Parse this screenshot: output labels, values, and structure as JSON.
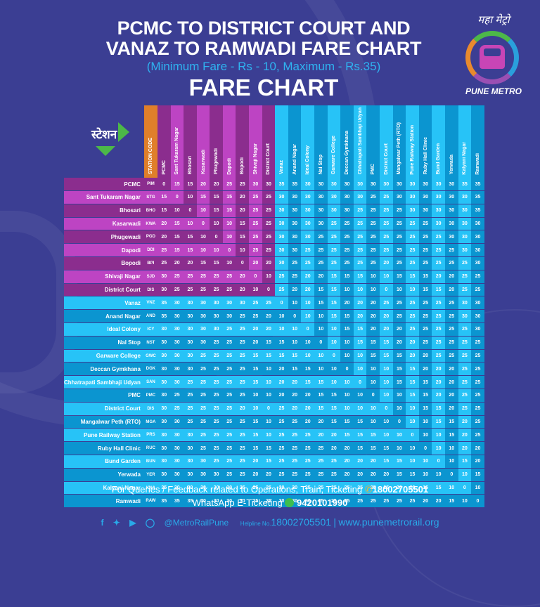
{
  "header": {
    "title_line1": "PCMC TO DISTRICT COURT AND",
    "title_line2": "VANAZ TO RAMWADI FARE CHART",
    "subtitle": "(Minimum Fare - Rs - 10, Maximum - Rs.35)",
    "heading": "FARE CHART"
  },
  "logo": {
    "hindi_text": "महा मेट्रो",
    "name": "PUNE METRO"
  },
  "table_labels": {
    "station_hindi": "स्टेशन",
    "station_code_header": "STATION CODE"
  },
  "colors": {
    "background": "#3b3e93",
    "purple_dark": "#8b2d8e",
    "purple_light": "#bd44c3",
    "blue_light": "#27c3f7",
    "blue_dark": "#0b95d0",
    "orange": "#e07f2a",
    "green": "#4cb848",
    "subtitle_blue": "#2fb3f0"
  },
  "chart_data": {
    "type": "table",
    "title": "PCMC TO DISTRICT COURT AND VANAZ TO RAMWADI FARE CHART",
    "subtitle": "(Minimum Fare - Rs - 10, Maximum - Rs.35)",
    "columns": [
      "PCMC",
      "Sant Tukaram Nagar",
      "Bhosari",
      "Kasarwadi",
      "Phugewadi",
      "Dapodi",
      "Bopodi",
      "Shivaji Nagar",
      "District Court",
      "Vanaz",
      "Anand Nagar",
      "Ideal Colony",
      "Nal Stop",
      "Garware College",
      "Deccan Gymkhana",
      "Chhatrapati Sambhaji Udyan",
      "PMC",
      "District Court",
      "Mangalwar Peth (RTO)",
      "Pune Railway Station",
      "Ruby Hall Clinic",
      "Bund Garden",
      "Yerwada",
      "Kalyani Nagar",
      "Ramwadi"
    ],
    "rows": [
      {
        "station": "PCMC",
        "code": "PIM",
        "line": "purple",
        "fares": [
          0,
          15,
          15,
          20,
          20,
          25,
          25,
          30,
          30,
          35,
          35,
          30,
          30,
          30,
          30,
          30,
          30,
          30,
          30,
          30,
          30,
          30,
          30,
          35,
          35
        ]
      },
      {
        "station": "Sant Tukaram Nagar",
        "code": "STG",
        "line": "purple",
        "fares": [
          15,
          0,
          10,
          15,
          15,
          15,
          20,
          25,
          25,
          30,
          30,
          30,
          30,
          30,
          30,
          30,
          25,
          25,
          30,
          30,
          30,
          30,
          30,
          30,
          35
        ]
      },
      {
        "station": "Bhosari",
        "code": "BHO",
        "line": "purple",
        "fares": [
          15,
          10,
          0,
          10,
          15,
          15,
          20,
          25,
          25,
          30,
          30,
          30,
          30,
          30,
          30,
          25,
          25,
          25,
          25,
          30,
          30,
          30,
          30,
          30,
          35
        ]
      },
      {
        "station": "Kasarwadi",
        "code": "KWA",
        "line": "purple",
        "fares": [
          20,
          15,
          10,
          0,
          10,
          10,
          15,
          25,
          25,
          30,
          30,
          30,
          30,
          25,
          25,
          25,
          25,
          25,
          25,
          25,
          25,
          30,
          30,
          30,
          30
        ]
      },
      {
        "station": "Phugewadi",
        "code": "PGD",
        "line": "purple",
        "fares": [
          20,
          15,
          15,
          10,
          0,
          10,
          15,
          25,
          25,
          30,
          30,
          30,
          25,
          25,
          25,
          25,
          25,
          25,
          25,
          25,
          25,
          25,
          30,
          30,
          30
        ]
      },
      {
        "station": "Dapodi",
        "code": "DDI",
        "line": "purple",
        "fares": [
          25,
          15,
          15,
          10,
          10,
          0,
          10,
          25,
          25,
          30,
          30,
          25,
          25,
          25,
          25,
          25,
          25,
          25,
          25,
          25,
          25,
          25,
          25,
          30,
          30
        ]
      },
      {
        "station": "Bopodi",
        "code": "BPI",
        "line": "purple",
        "fares": [
          25,
          20,
          20,
          15,
          15,
          10,
          0,
          20,
          20,
          30,
          25,
          25,
          25,
          25,
          25,
          25,
          25,
          20,
          25,
          25,
          25,
          25,
          25,
          25,
          30
        ]
      },
      {
        "station": "Shivaji Nagar",
        "code": "SJD",
        "line": "purple",
        "fares": [
          30,
          25,
          25,
          25,
          25,
          25,
          20,
          0,
          10,
          25,
          25,
          20,
          20,
          15,
          15,
          15,
          10,
          10,
          15,
          15,
          15,
          20,
          20,
          25,
          25
        ]
      },
      {
        "station": "District Court",
        "code": "DIS",
        "line": "purple",
        "fares": [
          30,
          25,
          25,
          25,
          25,
          25,
          20,
          10,
          0,
          25,
          20,
          20,
          15,
          15,
          10,
          10,
          10,
          0,
          10,
          10,
          15,
          15,
          20,
          25,
          25
        ]
      },
      {
        "station": "Vanaz",
        "code": "VNZ",
        "line": "aqua",
        "fares": [
          35,
          30,
          30,
          30,
          30,
          30,
          30,
          25,
          25,
          0,
          10,
          10,
          15,
          15,
          20,
          20,
          20,
          25,
          25,
          25,
          25,
          25,
          25,
          30,
          30
        ]
      },
      {
        "station": "Anand Nagar",
        "code": "AND",
        "line": "aqua",
        "fares": [
          35,
          30,
          30,
          30,
          30,
          30,
          25,
          25,
          20,
          10,
          0,
          10,
          10,
          15,
          15,
          20,
          20,
          20,
          25,
          25,
          25,
          25,
          25,
          30,
          30
        ]
      },
      {
        "station": "Ideal Colony",
        "code": "ICY",
        "line": "aqua",
        "fares": [
          30,
          30,
          30,
          30,
          30,
          25,
          25,
          20,
          20,
          10,
          10,
          0,
          10,
          10,
          15,
          15,
          20,
          20,
          20,
          25,
          25,
          25,
          25,
          25,
          30
        ]
      },
      {
        "station": "Nal Stop",
        "code": "NST",
        "line": "aqua",
        "fares": [
          30,
          30,
          30,
          30,
          25,
          25,
          25,
          20,
          15,
          15,
          10,
          10,
          0,
          10,
          10,
          15,
          15,
          15,
          20,
          20,
          25,
          25,
          25,
          25,
          25
        ]
      },
      {
        "station": "Garware College",
        "code": "GWC",
        "line": "aqua",
        "fares": [
          30,
          30,
          30,
          25,
          25,
          25,
          25,
          15,
          15,
          15,
          15,
          10,
          10,
          0,
          10,
          10,
          15,
          15,
          15,
          20,
          20,
          25,
          25,
          25,
          25
        ]
      },
      {
        "station": "Deccan Gymkhana",
        "code": "DGK",
        "line": "aqua",
        "fares": [
          30,
          30,
          30,
          25,
          25,
          25,
          25,
          15,
          10,
          20,
          15,
          15,
          10,
          10,
          0,
          10,
          10,
          10,
          15,
          15,
          20,
          20,
          20,
          25,
          25
        ]
      },
      {
        "station": "Chhatrapati Sambhaji Udyan",
        "code": "SAN",
        "line": "aqua",
        "fares": [
          30,
          30,
          25,
          25,
          25,
          25,
          25,
          15,
          10,
          20,
          20,
          15,
          15,
          10,
          10,
          0,
          10,
          10,
          15,
          15,
          15,
          20,
          20,
          25,
          25
        ]
      },
      {
        "station": "PMC",
        "code": "PMC",
        "line": "aqua",
        "fares": [
          30,
          25,
          25,
          25,
          25,
          25,
          25,
          10,
          10,
          20,
          20,
          20,
          15,
          15,
          10,
          10,
          0,
          10,
          10,
          15,
          15,
          20,
          20,
          25,
          25
        ]
      },
      {
        "station": "District Court",
        "code": "DIS",
        "line": "aqua",
        "fares": [
          30,
          25,
          25,
          25,
          25,
          25,
          20,
          10,
          0,
          25,
          20,
          20,
          15,
          15,
          10,
          10,
          10,
          0,
          10,
          10,
          15,
          15,
          20,
          25,
          25
        ]
      },
      {
        "station": "Mangalwar Peth (RTO)",
        "code": "MGA",
        "line": "aqua",
        "fares": [
          30,
          30,
          25,
          25,
          25,
          25,
          25,
          15,
          10,
          25,
          25,
          20,
          20,
          15,
          15,
          15,
          10,
          10,
          0,
          10,
          10,
          15,
          15,
          20,
          25
        ]
      },
      {
        "station": "Pune Railway Station",
        "code": "PRS",
        "line": "aqua",
        "fares": [
          30,
          30,
          30,
          25,
          25,
          25,
          25,
          15,
          10,
          25,
          25,
          25,
          20,
          20,
          15,
          15,
          15,
          10,
          10,
          0,
          10,
          10,
          15,
          20,
          25
        ]
      },
      {
        "station": "Ruby Hall Clinic",
        "code": "RUC",
        "line": "aqua",
        "fares": [
          30,
          30,
          30,
          25,
          25,
          25,
          25,
          15,
          15,
          25,
          25,
          25,
          25,
          20,
          20,
          15,
          15,
          15,
          10,
          10,
          0,
          10,
          10,
          20,
          20
        ]
      },
      {
        "station": "Bund Garden",
        "code": "BUN",
        "line": "aqua",
        "fares": [
          30,
          30,
          30,
          30,
          25,
          25,
          25,
          20,
          15,
          25,
          25,
          25,
          25,
          25,
          20,
          20,
          20,
          15,
          15,
          10,
          10,
          0,
          10,
          15,
          20
        ]
      },
      {
        "station": "Yerwada",
        "code": "YER",
        "line": "aqua",
        "fares": [
          30,
          30,
          30,
          30,
          30,
          25,
          25,
          20,
          20,
          25,
          25,
          25,
          25,
          25,
          20,
          20,
          20,
          20,
          15,
          15,
          10,
          10,
          0,
          10,
          15
        ]
      },
      {
        "station": "Kalyani Nagar",
        "code": "KNA",
        "line": "aqua",
        "fares": [
          35,
          30,
          30,
          30,
          30,
          30,
          25,
          25,
          25,
          30,
          30,
          25,
          25,
          25,
          25,
          25,
          25,
          25,
          20,
          20,
          15,
          15,
          10,
          0,
          10
        ]
      },
      {
        "station": "Ramwadi",
        "code": "RAW",
        "line": "aqua",
        "fares": [
          35,
          35,
          35,
          30,
          30,
          30,
          30,
          25,
          25,
          30,
          30,
          30,
          25,
          25,
          25,
          25,
          25,
          25,
          25,
          25,
          20,
          20,
          15,
          10,
          0
        ]
      }
    ],
    "min_fare": 10,
    "max_fare": 35,
    "currency": "Rs"
  },
  "footer": {
    "queries_text": "For Queries / Feedback related to Operations, Train, Ticketing",
    "queries_phone": "18002705501",
    "whatsapp_text": "WhatsApp E-Ticketing",
    "whatsapp_number": "9420101990",
    "social_handle": "@MetroRailPune",
    "helpline_label": "Helpline No.",
    "helpline_number": "18002705501",
    "separator": "|",
    "website": "www.punemetrorail.org",
    "icons": [
      "facebook-icon",
      "twitter-icon",
      "youtube-icon",
      "instagram-icon",
      "phone-icon",
      "whatsapp-icon"
    ]
  }
}
